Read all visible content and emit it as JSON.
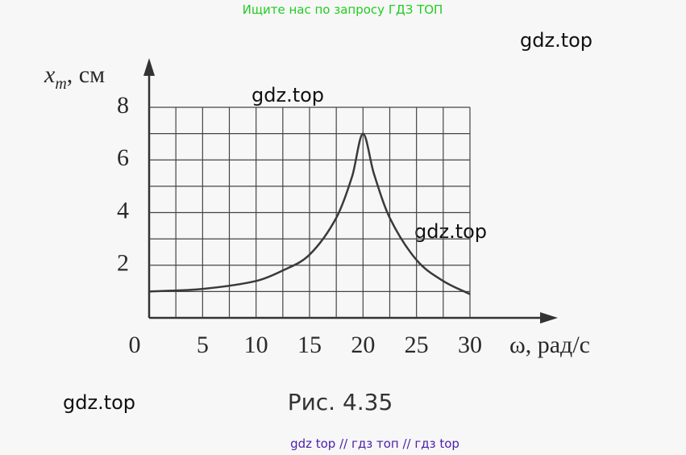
{
  "header": "Ищите нас по запросу ГДЗ ТОП",
  "watermarks": [
    "gdz.top",
    "gdz.top",
    "gdz.top",
    "gdz.top"
  ],
  "footer": "gdz top  //  гдз топ  //  гдз top",
  "chart_data": {
    "type": "line",
    "title": "Рис. 4.35",
    "x_label": "ω, рад/с",
    "y_label": "x",
    "y_label_sub": "m",
    "y_label_unit": ", см",
    "x": [
      0,
      5,
      10,
      12.5,
      15,
      17.5,
      19,
      20,
      21,
      22.5,
      25,
      27.5,
      30
    ],
    "series": [
      {
        "name": "x_m",
        "color": "#3a3a3a",
        "values": [
          1.0,
          1.1,
          1.4,
          1.8,
          2.4,
          3.8,
          5.4,
          7.0,
          5.5,
          3.8,
          2.2,
          1.4,
          0.9
        ]
      }
    ],
    "xlim": [
      0,
      30
    ],
    "ylim": [
      0,
      8
    ],
    "xticks": [
      0,
      5,
      10,
      15,
      20,
      25,
      30
    ],
    "yticks": [
      2,
      4,
      6,
      8
    ],
    "xgrid": [
      2.5,
      5,
      7.5,
      10,
      12.5,
      15,
      17.5,
      20,
      22.5,
      25,
      27.5,
      30
    ],
    "ygrid": [
      1,
      2,
      3,
      4,
      5,
      6,
      7,
      8
    ],
    "grid": true
  }
}
